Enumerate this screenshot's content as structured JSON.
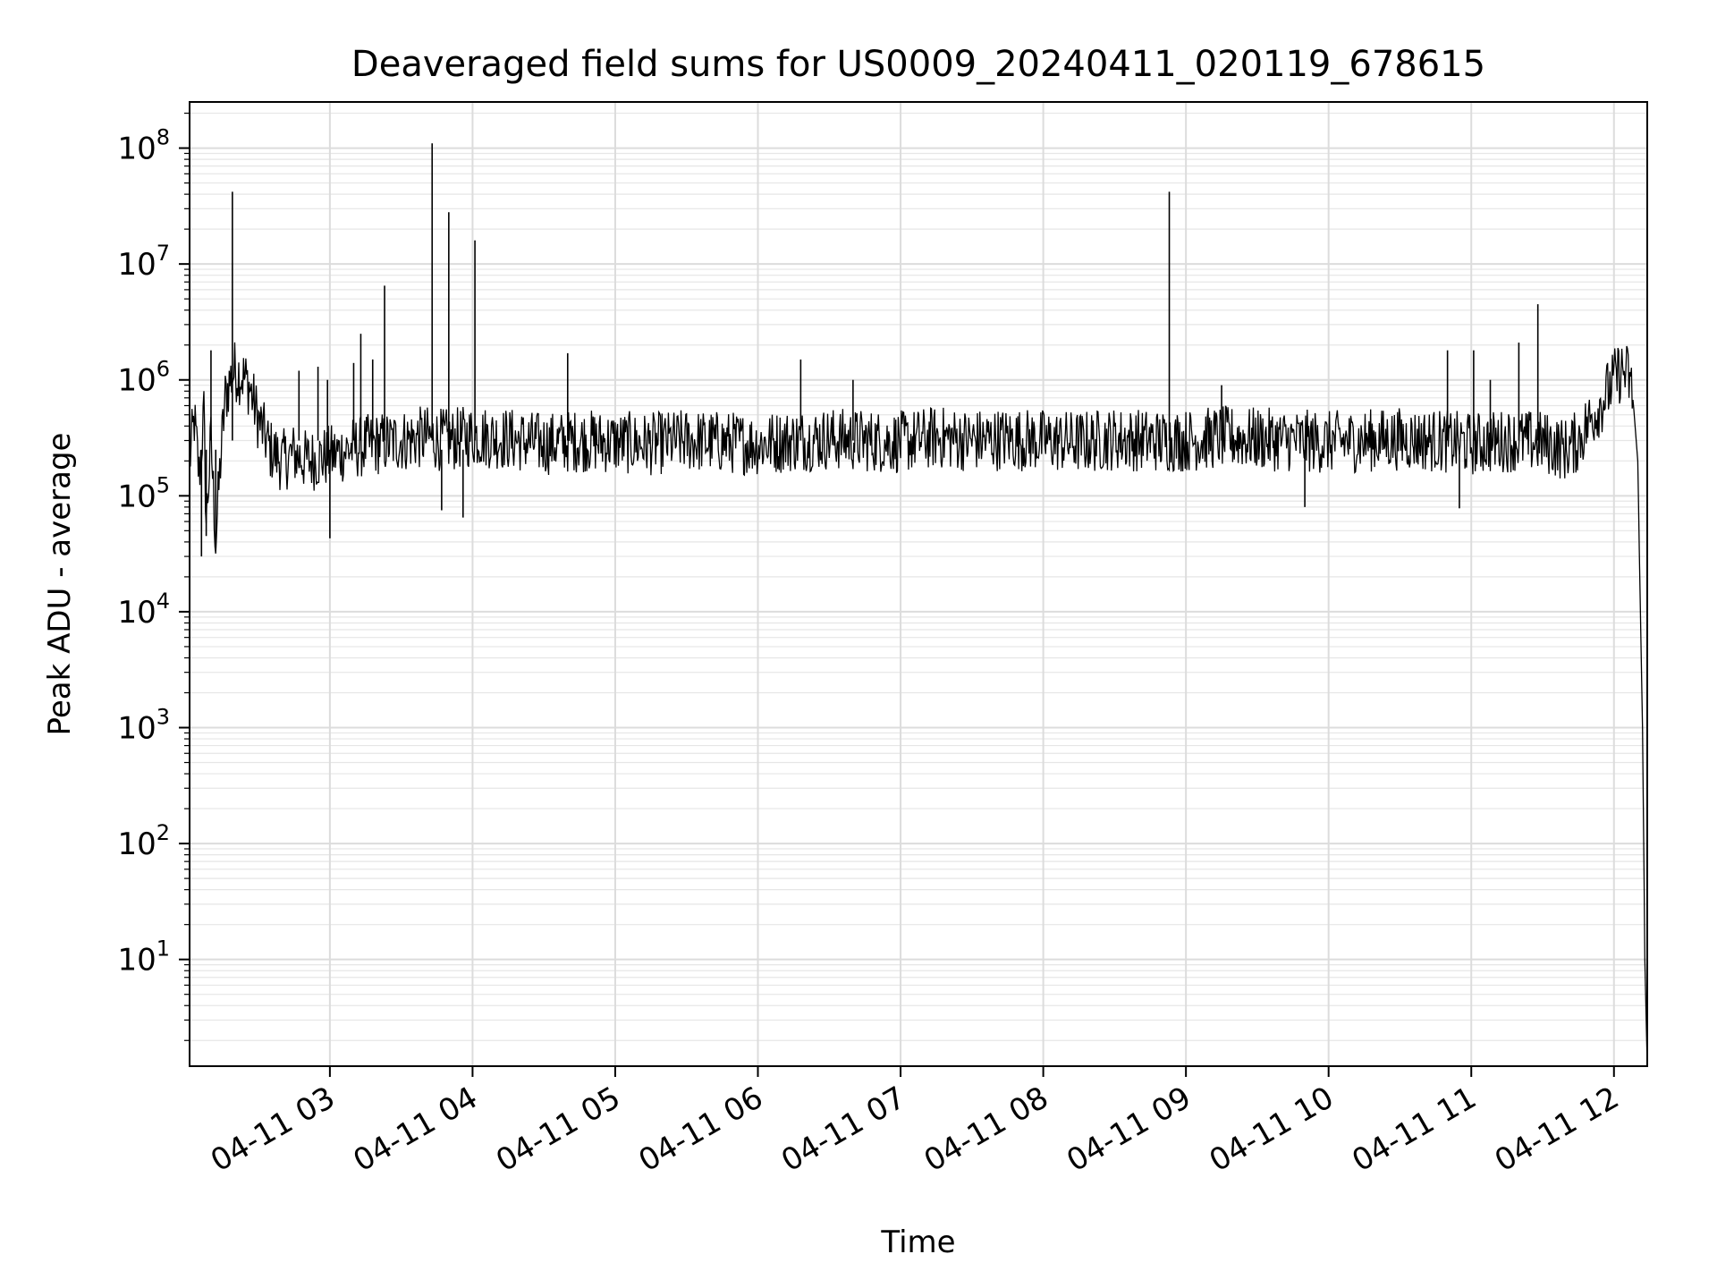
{
  "chart_data": {
    "type": "line",
    "title": "Deaveraged field sums for US0009_20240411_020119_678615",
    "xlabel": "Time",
    "ylabel": "Peak ADU - average",
    "yscale": "log",
    "grid": true,
    "line_color": "#000000",
    "x_range": [
      "04-11 02:01",
      "04-11 12:14"
    ],
    "ylim": [
      1.2,
      250000000
    ],
    "x_ticks": [
      "04-11 03",
      "04-11 04",
      "04-11 05",
      "04-11 06",
      "04-11 07",
      "04-11 08",
      "04-11 09",
      "04-11 10",
      "04-11 11",
      "04-11 12"
    ],
    "y_ticks": [
      {
        "value": 10,
        "base": "10",
        "exponent": "1"
      },
      {
        "value": 100,
        "base": "10",
        "exponent": "2"
      },
      {
        "value": 1000,
        "base": "10",
        "exponent": "3"
      },
      {
        "value": 10000,
        "base": "10",
        "exponent": "4"
      },
      {
        "value": 100000,
        "base": "10",
        "exponent": "5"
      },
      {
        "value": 1000000,
        "base": "10",
        "exponent": "6"
      },
      {
        "value": 10000000,
        "base": "10",
        "exponent": "7"
      },
      {
        "value": 100000000,
        "base": "10",
        "exponent": "8"
      }
    ],
    "series": [
      {
        "x": [
          "04-11 02:01",
          "04-11 02:03",
          "04-11 02:05",
          "04-11 02:07",
          "04-11 02:08",
          "04-11 02:10",
          "04-11 02:12",
          "04-11 02:14",
          "04-11 02:16",
          "04-11 02:18",
          "04-11 02:20",
          "04-11 02:23",
          "04-11 02:26",
          "04-11 02:30",
          "04-11 02:35",
          "04-11 02:40",
          "04-11 02:45",
          "04-11 02:50",
          "04-11 03:00",
          "04-11 03:10",
          "04-11 03:20",
          "04-11 03:30",
          "04-11 03:40",
          "04-11 03:50",
          "04-11 04:00",
          "04-11 04:15",
          "04-11 04:30",
          "04-11 04:45",
          "04-11 05:00",
          "04-11 05:15",
          "04-11 05:30",
          "04-11 05:45",
          "04-11 06:00",
          "04-11 06:15",
          "04-11 06:30",
          "04-11 06:45",
          "04-11 07:00",
          "04-11 07:15",
          "04-11 07:30",
          "04-11 07:45",
          "04-11 08:00",
          "04-11 08:15",
          "04-11 08:30",
          "04-11 08:45",
          "04-11 09:00",
          "04-11 09:15",
          "04-11 09:30",
          "04-11 09:45",
          "04-11 10:00",
          "04-11 10:15",
          "04-11 10:30",
          "04-11 10:45",
          "04-11 11:00",
          "04-11 11:15",
          "04-11 11:30",
          "04-11 11:40",
          "04-11 11:45",
          "04-11 11:50",
          "04-11 11:55",
          "04-11 12:00",
          "04-11 12:03",
          "04-11 12:06",
          "04-11 12:08",
          "04-11 12:10",
          "04-11 12:12",
          "04-11 12:13",
          "04-11 12:14"
        ],
        "y": [
          200000,
          450000,
          150000,
          500000,
          60000,
          300000,
          40000,
          200000,
          700000,
          1000000,
          1200000,
          1100000,
          900000,
          450000,
          250000,
          200000,
          230000,
          200000,
          220000,
          260000,
          280000,
          300000,
          320000,
          300000,
          330000,
          310000,
          280000,
          300000,
          290000,
          280000,
          300000,
          290000,
          280000,
          300000,
          310000,
          300000,
          290000,
          320000,
          300000,
          310000,
          300000,
          290000,
          310000,
          300000,
          300000,
          320000,
          310000,
          300000,
          290000,
          300000,
          310000,
          300000,
          280000,
          300000,
          290000,
          250000,
          300000,
          450000,
          650000,
          1000000,
          1200000,
          1100000,
          700000,
          200000,
          1000,
          10,
          1.2
        ]
      }
    ],
    "spikes": [
      {
        "x": "04-11 02:19",
        "y": 42000000
      },
      {
        "x": "04-11 02:10",
        "y": 1800000
      },
      {
        "x": "04-11 02:47",
        "y": 1200000
      },
      {
        "x": "04-11 02:55",
        "y": 1300000
      },
      {
        "x": "04-11 02:59",
        "y": 1000000
      },
      {
        "x": "04-11 03:10",
        "y": 1400000
      },
      {
        "x": "04-11 03:13",
        "y": 2500000
      },
      {
        "x": "04-11 03:18",
        "y": 1500000
      },
      {
        "x": "04-11 03:23",
        "y": 6500000
      },
      {
        "x": "04-11 03:43",
        "y": 110000000
      },
      {
        "x": "04-11 03:50",
        "y": 28000000
      },
      {
        "x": "04-11 04:01",
        "y": 16000000
      },
      {
        "x": "04-11 04:40",
        "y": 1700000
      },
      {
        "x": "04-11 06:18",
        "y": 1500000
      },
      {
        "x": "04-11 06:40",
        "y": 1000000
      },
      {
        "x": "04-11 08:53",
        "y": 42000000
      },
      {
        "x": "04-11 09:15",
        "y": 900000
      },
      {
        "x": "04-11 10:50",
        "y": 1800000
      },
      {
        "x": "04-11 11:01",
        "y": 1800000
      },
      {
        "x": "04-11 11:08",
        "y": 1000000
      },
      {
        "x": "04-11 11:20",
        "y": 2100000
      },
      {
        "x": "04-11 11:28",
        "y": 4500000
      }
    ],
    "dips": [
      {
        "x": "04-11 02:06",
        "y": 30000
      },
      {
        "x": "04-11 02:08",
        "y": 45000
      },
      {
        "x": "04-11 02:12",
        "y": 35000
      },
      {
        "x": "04-11 03:00",
        "y": 43000
      },
      {
        "x": "04-11 03:56",
        "y": 65000
      },
      {
        "x": "04-11 03:47",
        "y": 75000
      },
      {
        "x": "04-11 09:50",
        "y": 80000
      },
      {
        "x": "04-11 10:55",
        "y": 78000
      }
    ]
  }
}
